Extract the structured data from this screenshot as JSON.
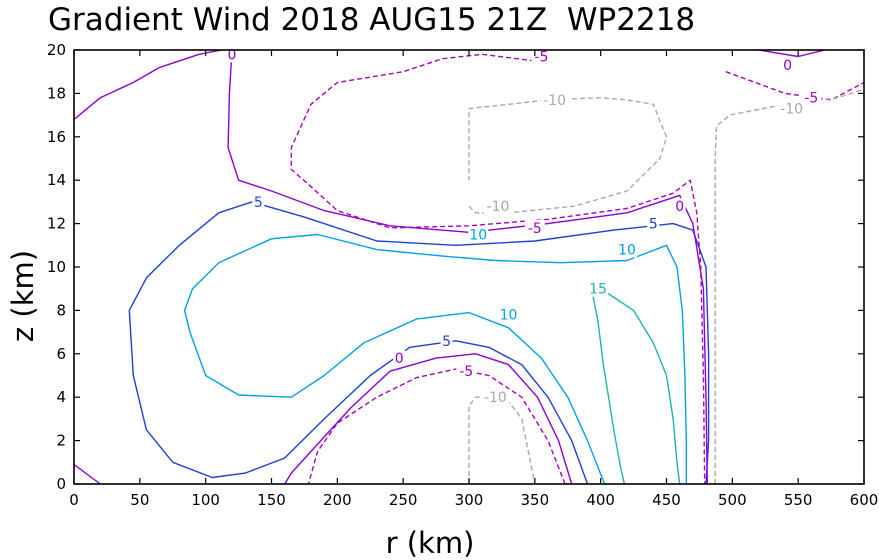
{
  "chart_data": {
    "type": "contour",
    "title": "Gradient Wind 2018 AUG15 21Z  WP2218",
    "xlabel": "r (km)",
    "ylabel": "z (km)",
    "xlim": [
      0,
      600
    ],
    "ylim": [
      0,
      20
    ],
    "xticks": [
      0,
      50,
      100,
      150,
      200,
      250,
      300,
      350,
      400,
      450,
      500,
      550,
      600
    ],
    "yticks": [
      0,
      2,
      4,
      6,
      8,
      10,
      12,
      14,
      16,
      18,
      20
    ],
    "grid": false,
    "levels": [
      {
        "level": 15,
        "label": "15",
        "color": "#20b2aa",
        "dashed": false,
        "paths": [
          [
            [
              393,
              9
            ],
            [
              398,
              7.5
            ],
            [
              402,
              5.5
            ],
            [
              406,
              4
            ],
            [
              410,
              2.5
            ],
            [
              415,
              0.8
            ],
            [
              418,
              0
            ]
          ],
          [
            [
              393,
              9
            ],
            [
              405,
              8.8
            ],
            [
              425,
              8
            ],
            [
              440,
              6.5
            ],
            [
              450,
              5
            ],
            [
              455,
              3
            ],
            [
              458,
              1
            ],
            [
              460,
              0
            ]
          ]
        ],
        "labels": [
          {
            "x": 398,
            "y": 9,
            "text": "15"
          }
        ]
      },
      {
        "level": 10,
        "label": "10",
        "color": "#00a0e8",
        "dashed": false,
        "paths": [
          [
            [
              403,
              0
            ],
            [
              390,
              2
            ],
            [
              375,
              4
            ],
            [
              355,
              5.8
            ],
            [
              330,
              7.2
            ],
            [
              300,
              7.9
            ],
            [
              260,
              7.6
            ],
            [
              220,
              6.5
            ],
            [
              190,
              5
            ],
            [
              165,
              4
            ],
            [
              125,
              4.1
            ],
            [
              100,
              5
            ],
            [
              88,
              7
            ],
            [
              84,
              8
            ],
            [
              90,
              9
            ],
            [
              110,
              10.2
            ],
            [
              150,
              11.3
            ],
            [
              185,
              11.5
            ],
            [
              230,
              10.8
            ],
            [
              280,
              10.5
            ],
            [
              320,
              10.3
            ],
            [
              370,
              10.2
            ],
            [
              420,
              10.3
            ],
            [
              450,
              11
            ],
            [
              458,
              10
            ],
            [
              462,
              8
            ],
            [
              464,
              5
            ],
            [
              465,
              2
            ],
            [
              465,
              0
            ]
          ]
        ],
        "labels": [
          {
            "x": 307,
            "y": 11.5,
            "text": "10"
          },
          {
            "x": 420,
            "y": 10.8,
            "text": "10"
          },
          {
            "x": 330,
            "y": 7.8,
            "text": "10"
          }
        ]
      },
      {
        "level": 5,
        "label": "5",
        "color": "#1f3fd8",
        "dashed": false,
        "paths": [
          [
            [
              390,
              0
            ],
            [
              378,
              2
            ],
            [
              360,
              4
            ],
            [
              340,
              5.5
            ],
            [
              315,
              6.3
            ],
            [
              290,
              6.6
            ],
            [
              255,
              6.3
            ],
            [
              225,
              5
            ],
            [
              190,
              3
            ],
            [
              160,
              1.2
            ],
            [
              130,
              0.5
            ],
            [
              105,
              0.3
            ],
            [
              75,
              1
            ],
            [
              55,
              2.5
            ],
            [
              45,
              5
            ],
            [
              42,
              8
            ],
            [
              55,
              9.5
            ],
            [
              80,
              11
            ],
            [
              110,
              12.5
            ],
            [
              135,
              13
            ],
            [
              175,
              12.3
            ],
            [
              230,
              11.2
            ],
            [
              290,
              11
            ],
            [
              350,
              11.2
            ],
            [
              410,
              11.7
            ],
            [
              455,
              12
            ],
            [
              470,
              11.7
            ],
            [
              480,
              10
            ],
            [
              482,
              6
            ],
            [
              482,
              2
            ],
            [
              480,
              0
            ]
          ]
        ],
        "labels": [
          {
            "x": 140,
            "y": 13,
            "text": "5"
          },
          {
            "x": 440,
            "y": 12,
            "text": "5"
          },
          {
            "x": 283,
            "y": 6.6,
            "text": "5"
          }
        ]
      },
      {
        "level": 0,
        "label": "0",
        "color": "#8b00d4",
        "dashed": false,
        "paths": [
          [
            [
              378,
              0
            ],
            [
              368,
              2
            ],
            [
              352,
              4
            ],
            [
              330,
              5.5
            ],
            [
              305,
              6
            ],
            [
              275,
              5.8
            ],
            [
              240,
              5.2
            ],
            [
              210,
              3.5
            ],
            [
              180,
              1.5
            ],
            [
              165,
              0.5
            ],
            [
              160,
              0
            ]
          ],
          [
            [
              0,
              16.8
            ],
            [
              20,
              17.8
            ],
            [
              45,
              18.5
            ],
            [
              65,
              19.2
            ],
            [
              95,
              19.8
            ],
            [
              112,
              20
            ]
          ],
          [
            [
              0,
              0.9
            ],
            [
              20,
              0
            ]
          ],
          [
            [
              120,
              20
            ],
            [
              118,
              18
            ],
            [
              117,
              15.5
            ],
            [
              125,
              14
            ],
            [
              150,
              13.5
            ],
            [
              190,
              12.6
            ],
            [
              240,
              11.9
            ],
            [
              300,
              11.6
            ],
            [
              360,
              12
            ],
            [
              420,
              12.5
            ],
            [
              460,
              13.3
            ],
            [
              470,
              12
            ],
            [
              478,
              9
            ],
            [
              480,
              4
            ],
            [
              481,
              0
            ]
          ],
          [
            [
              520,
              20
            ],
            [
              550,
              19.7
            ],
            [
              570,
              20
            ]
          ]
        ],
        "labels": [
          {
            "x": 120,
            "y": 19.8,
            "text": "0"
          },
          {
            "x": 247,
            "y": 5.8,
            "text": "0"
          },
          {
            "x": 460,
            "y": 12.8,
            "text": "0"
          },
          {
            "x": 542,
            "y": 19.3,
            "text": "0"
          }
        ]
      },
      {
        "level": -5,
        "label": "-5",
        "color": "#a800c0",
        "dashed": true,
        "paths": [
          [
            [
              373,
              0
            ],
            [
              360,
              2
            ],
            [
              340,
              4
            ],
            [
              315,
              5
            ],
            [
              290,
              5.3
            ],
            [
              260,
              4.9
            ],
            [
              230,
              4
            ],
            [
              200,
              2.8
            ],
            [
              185,
              1.5
            ],
            [
              178,
              0
            ]
          ],
          [
            [
              350,
              19.5
            ],
            [
              310,
              19.8
            ],
            [
              280,
              19.6
            ],
            [
              250,
              19
            ],
            [
              200,
              18.5
            ],
            [
              180,
              17.5
            ],
            [
              165,
              15.5
            ],
            [
              165,
              14.5
            ],
            [
              180,
              13.7
            ],
            [
              200,
              12.6
            ],
            [
              240,
              11.8
            ],
            [
              300,
              11.9
            ],
            [
              360,
              12.2
            ],
            [
              420,
              12.7
            ],
            [
              455,
              13.4
            ],
            [
              468,
              14
            ],
            [
              473,
              12.5
            ],
            [
              476,
              10
            ],
            [
              478,
              5
            ],
            [
              479,
              0
            ]
          ],
          [
            [
              495,
              19
            ],
            [
              540,
              18
            ],
            [
              575,
              17.7
            ],
            [
              600,
              18.5
            ]
          ]
        ],
        "labels": [
          {
            "x": 355,
            "y": 19.7,
            "text": "-5"
          },
          {
            "x": 298,
            "y": 5.2,
            "text": "-5"
          },
          {
            "x": 350,
            "y": 11.8,
            "text": "-5"
          },
          {
            "x": 560,
            "y": 17.8,
            "text": "-5"
          }
        ]
      },
      {
        "level": -10,
        "label": "-10",
        "color": "#a8a8a8",
        "dashed": true,
        "paths": [
          [
            [
              300,
              0
            ],
            [
              300,
              2
            ],
            [
              300,
              3.6
            ],
            [
              305,
              4
            ],
            [
              315,
              4
            ],
            [
              330,
              3.8
            ],
            [
              340,
              3
            ],
            [
              345,
              1.5
            ],
            [
              350,
              0
            ]
          ],
          [
            [
              300,
              12.8
            ],
            [
              305,
              12.5
            ],
            [
              330,
              12.5
            ],
            [
              380,
              12.8
            ],
            [
              420,
              13.5
            ],
            [
              445,
              15
            ],
            [
              450,
              16
            ],
            [
              440,
              17.5
            ],
            [
              420,
              17.7
            ],
            [
              400,
              17.8
            ],
            [
              360,
              17.7
            ],
            [
              330,
              17.5
            ],
            [
              300,
              17.3
            ],
            [
              300,
              16
            ],
            [
              300,
              14
            ]
          ],
          [
            [
              487,
              0
            ],
            [
              487,
              6
            ],
            [
              487,
              12
            ],
            [
              487,
              15
            ],
            [
              488,
              16.5
            ],
            [
              498,
              17
            ],
            [
              540,
              17.5
            ],
            [
              580,
              17.8
            ],
            [
              600,
              18.2
            ]
          ]
        ],
        "labels": [
          {
            "x": 365,
            "y": 17.7,
            "text": "-10"
          },
          {
            "x": 322,
            "y": 12.8,
            "text": "-10"
          },
          {
            "x": 320,
            "y": 4,
            "text": "-10"
          },
          {
            "x": 545,
            "y": 17.3,
            "text": "-10"
          }
        ]
      }
    ]
  }
}
